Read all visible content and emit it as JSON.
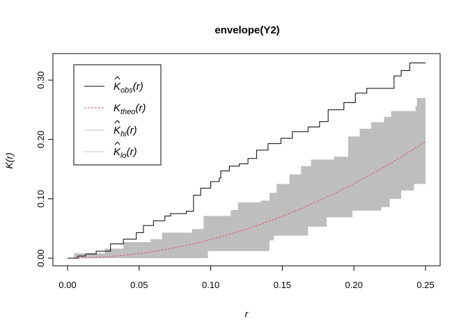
{
  "chart_data": {
    "type": "line",
    "title": "envelope(Y2)",
    "xlabel": "r",
    "ylabel": "K(r)",
    "xlim": [
      0,
      0.25
    ],
    "ylim": [
      0,
      0.33
    ],
    "xticks": [
      "0.00",
      "0.05",
      "0.10",
      "0.15",
      "0.20",
      "0.25"
    ],
    "xtick_values": [
      0,
      0.05,
      0.1,
      0.15,
      0.2,
      0.25
    ],
    "yticks": [
      "0.00",
      "0.10",
      "0.20",
      "0.30"
    ],
    "ytick_values": [
      0,
      0.1,
      0.2,
      0.3
    ],
    "legend_position": "top-left",
    "legend": [
      {
        "base": "K",
        "hat": true,
        "sub": "obs",
        "arg": "(r)",
        "color": "#000000",
        "dash": false
      },
      {
        "base": "K",
        "hat": false,
        "sub": "theo",
        "arg": "(r)",
        "color": "#DF536B",
        "dash": true
      },
      {
        "base": "K",
        "hat": true,
        "sub": "hi",
        "arg": "(r)",
        "color": "#BEBEBE",
        "dash": false
      },
      {
        "base": "K",
        "hat": true,
        "sub": "lo",
        "arg": "(r)",
        "color": "#BEBEBE",
        "dash": false
      }
    ],
    "series": {
      "obs": [
        [
          0,
          0
        ],
        [
          0.0072,
          0.0035
        ],
        [
          0.0126,
          0.007
        ],
        [
          0.02,
          0.0117
        ],
        [
          0.03,
          0.024
        ],
        [
          0.039,
          0.032
        ],
        [
          0.048,
          0.043
        ],
        [
          0.053,
          0.055
        ],
        [
          0.06,
          0.063
        ],
        [
          0.068,
          0.071
        ],
        [
          0.072,
          0.075
        ],
        [
          0.083,
          0.079
        ],
        [
          0.088,
          0.106
        ],
        [
          0.093,
          0.118
        ],
        [
          0.1,
          0.129
        ],
        [
          0.106,
          0.135
        ],
        [
          0.107,
          0.147
        ],
        [
          0.113,
          0.155
        ],
        [
          0.12,
          0.159
        ],
        [
          0.126,
          0.168
        ],
        [
          0.132,
          0.182
        ],
        [
          0.14,
          0.193
        ],
        [
          0.149,
          0.202
        ],
        [
          0.157,
          0.213
        ],
        [
          0.168,
          0.221
        ],
        [
          0.176,
          0.23
        ],
        [
          0.182,
          0.25
        ],
        [
          0.19,
          0.25
        ],
        [
          0.193,
          0.262
        ],
        [
          0.201,
          0.278
        ],
        [
          0.209,
          0.286
        ],
        [
          0.224,
          0.286
        ],
        [
          0.228,
          0.307
        ],
        [
          0.233,
          0.316
        ],
        [
          0.239,
          0.329
        ],
        [
          0.25,
          0.329
        ]
      ],
      "hi": [
        [
          0,
          0
        ],
        [
          0.0045,
          0.008
        ],
        [
          0.026,
          0.016
        ],
        [
          0.039,
          0.027
        ],
        [
          0.058,
          0.032
        ],
        [
          0.066,
          0.043
        ],
        [
          0.087,
          0.049
        ],
        [
          0.095,
          0.071
        ],
        [
          0.114,
          0.081
        ],
        [
          0.119,
          0.094
        ],
        [
          0.135,
          0.097
        ],
        [
          0.141,
          0.11
        ],
        [
          0.146,
          0.125
        ],
        [
          0.155,
          0.141
        ],
        [
          0.163,
          0.155
        ],
        [
          0.17,
          0.166
        ],
        [
          0.186,
          0.171
        ],
        [
          0.196,
          0.205
        ],
        [
          0.204,
          0.218
        ],
        [
          0.212,
          0.229
        ],
        [
          0.221,
          0.238
        ],
        [
          0.226,
          0.248
        ],
        [
          0.243,
          0.256
        ],
        [
          0.244,
          0.27
        ],
        [
          0.25,
          0.27
        ]
      ],
      "lo": [
        [
          0,
          0
        ],
        [
          0.091,
          0
        ],
        [
          0.098,
          0.012
        ],
        [
          0.141,
          0.014
        ],
        [
          0.141,
          0.03
        ],
        [
          0.144,
          0.038
        ],
        [
          0.168,
          0.041
        ],
        [
          0.168,
          0.053
        ],
        [
          0.181,
          0.069
        ],
        [
          0.199,
          0.069
        ],
        [
          0.199,
          0.08
        ],
        [
          0.219,
          0.086
        ],
        [
          0.225,
          0.1
        ],
        [
          0.233,
          0.114
        ],
        [
          0.242,
          0.116
        ],
        [
          0.242,
          0.125
        ],
        [
          0.25,
          0.131
        ]
      ],
      "theo_formula": "pi*r^2"
    }
  }
}
